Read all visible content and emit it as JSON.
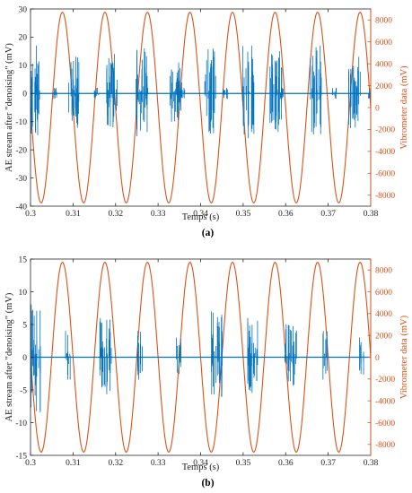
{
  "colors": {
    "ae_series": "#0072BD",
    "vibrometer_series": "#D95319",
    "axis": "#262626"
  },
  "chart_data": [
    {
      "type": "line",
      "panel_label": "(a)",
      "xlabel": "Temps (s)",
      "ylabel_left": "AE stream after \"denoising\" (mV)",
      "ylabel_right": "Vibrometer data (mV)",
      "xlim": [
        0.3,
        0.38
      ],
      "ylim_left": [
        -40,
        30
      ],
      "ylim_right": [
        -9000,
        9000
      ],
      "x_ticks": [
        "0.3",
        "0.31",
        "0.32",
        "0.33",
        "0.34",
        "0.35",
        "0.36",
        "0.37",
        "0.38"
      ],
      "y_ticks_left": [
        "-40",
        "-30",
        "-20",
        "-10",
        "0",
        "10",
        "20",
        "30"
      ],
      "y_ticks_right": [
        "-8000",
        "-6000",
        "-4000",
        "-2000",
        "0",
        "2000",
        "4000",
        "6000",
        "8000"
      ],
      "grid": false,
      "series": [
        {
          "axis": "right",
          "kind": "sinusoid",
          "amplitude": 8700,
          "frequency_hz": 100,
          "first_peak_x": 0.3075,
          "x_range": [
            0.3,
            0.38
          ]
        },
        {
          "axis": "left",
          "kind": "burst-train",
          "baseline": 0,
          "bursts": [
            {
              "x": 0.3003,
              "amp": 17
            },
            {
              "x": 0.3055,
              "amp": 2
            },
            {
              "x": 0.3095,
              "amp": 13
            },
            {
              "x": 0.3152,
              "amp": 2
            },
            {
              "x": 0.3185,
              "amp": 14
            },
            {
              "x": 0.3255,
              "amp": 16
            },
            {
              "x": 0.327,
              "amp": 2
            },
            {
              "x": 0.3335,
              "amp": 11
            },
            {
              "x": 0.3355,
              "amp": 2
            },
            {
              "x": 0.3415,
              "amp": 16
            },
            {
              "x": 0.3455,
              "amp": 2
            },
            {
              "x": 0.3505,
              "amp": 17
            },
            {
              "x": 0.357,
              "amp": 15
            },
            {
              "x": 0.3585,
              "amp": 2
            },
            {
              "x": 0.3665,
              "amp": 17
            },
            {
              "x": 0.3712,
              "amp": 2
            },
            {
              "x": 0.3755,
              "amp": 13
            },
            {
              "x": 0.3795,
              "amp": 2
            }
          ]
        }
      ]
    },
    {
      "type": "line",
      "panel_label": "(b)",
      "xlabel": "Temps (s)",
      "ylabel_left": "AE stream after \"denoising\" (mV)",
      "ylabel_right": "Vibrometer data (mV)",
      "xlim": [
        0.3,
        0.38
      ],
      "ylim_left": [
        -15,
        15
      ],
      "ylim_right": [
        -9000,
        9000
      ],
      "x_ticks": [
        "0.3",
        "0.31",
        "0.32",
        "0.33",
        "0.34",
        "0.35",
        "0.36",
        "0.37",
        "0.38"
      ],
      "y_ticks_left": [
        "-15",
        "-10",
        "-5",
        "0",
        "5",
        "10",
        "15"
      ],
      "y_ticks_right": [
        "-8000",
        "-6000",
        "-4000",
        "-2000",
        "0",
        "2000",
        "4000",
        "6000",
        "8000"
      ],
      "grid": false,
      "series": [
        {
          "axis": "right",
          "kind": "sinusoid",
          "amplitude": 8700,
          "frequency_hz": 100,
          "first_peak_x": 0.3075,
          "x_range": [
            0.3,
            0.38
          ]
        },
        {
          "axis": "left",
          "kind": "burst-train",
          "baseline": 0,
          "bursts": [
            {
              "x": 0.3005,
              "amp": 9
            },
            {
              "x": 0.3085,
              "amp": 4
            },
            {
              "x": 0.317,
              "amp": 6
            },
            {
              "x": 0.3255,
              "amp": 4
            },
            {
              "x": 0.3345,
              "amp": 3
            },
            {
              "x": 0.343,
              "amp": 7
            },
            {
              "x": 0.3515,
              "amp": 6
            },
            {
              "x": 0.3605,
              "amp": 5
            },
            {
              "x": 0.369,
              "amp": 4
            },
            {
              "x": 0.3775,
              "amp": 3
            }
          ]
        }
      ]
    }
  ]
}
